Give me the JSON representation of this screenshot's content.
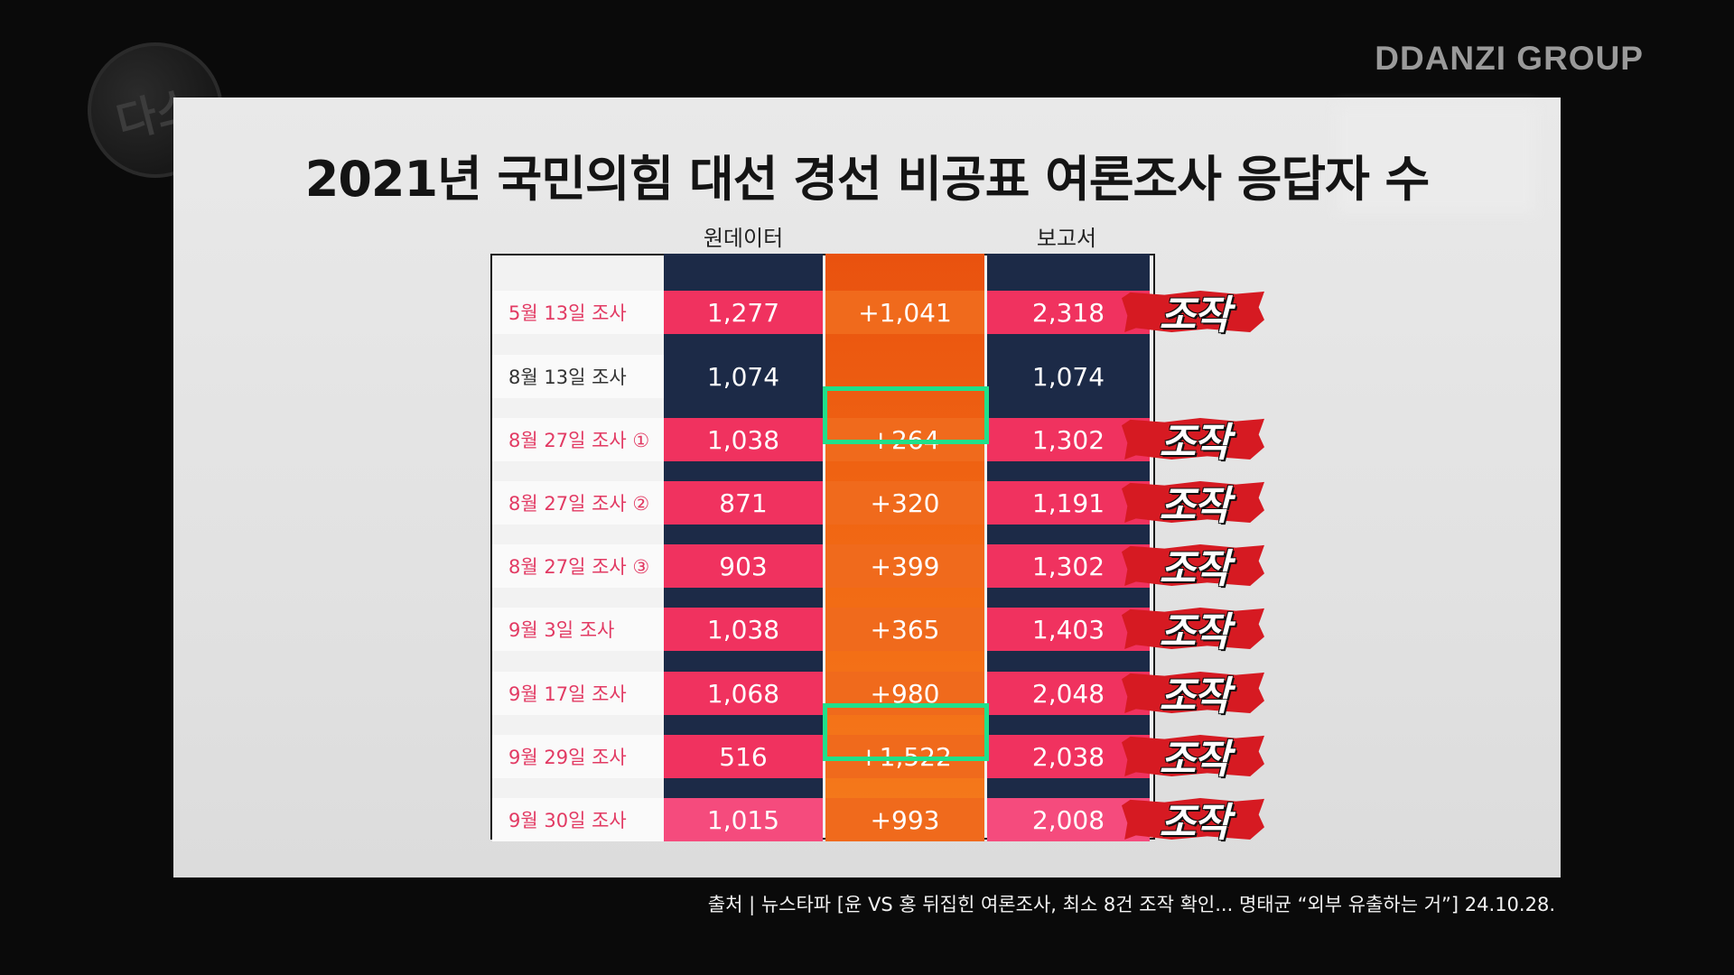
{
  "logo": {
    "text": "다스"
  },
  "brand": {
    "name": "DDANZI GROUP"
  },
  "colors": {
    "navy": "#1c2a47",
    "pink": "#f0325f",
    "pink_light": "#f54b7d",
    "orange": "#f06a1c",
    "orange_dark": "#e9520f",
    "highlight": "#20e08a",
    "stamp_red": "#d61a22"
  },
  "chart_data": {
    "type": "table",
    "title": "2021년 국민의힘 대선 경선 비공표 여론조사 응답자 수",
    "columns": [
      "원데이터",
      "",
      "보고서"
    ],
    "rows": [
      {
        "label": "5월 13일 조사",
        "raw": "1,277",
        "diff": "+1,041",
        "report": "2,318",
        "tag": "조작",
        "highlight": false,
        "manipulated": true
      },
      {
        "label": "8월 13일 조사",
        "raw": "1,074",
        "diff": "",
        "report": "1,074",
        "tag": "",
        "highlight": false,
        "manipulated": false
      },
      {
        "label": "8월 27일 조사 ①",
        "raw": "1,038",
        "diff": "+264",
        "report": "1,302",
        "tag": "조작",
        "highlight": true,
        "manipulated": true
      },
      {
        "label": "8월 27일 조사 ②",
        "raw": "871",
        "diff": "+320",
        "report": "1,191",
        "tag": "조작",
        "highlight": false,
        "manipulated": true
      },
      {
        "label": "8월 27일 조사 ③",
        "raw": "903",
        "diff": "+399",
        "report": "1,302",
        "tag": "조작",
        "highlight": false,
        "manipulated": true
      },
      {
        "label": "9월   3일 조사",
        "raw": "1,038",
        "diff": "+365",
        "report": "1,403",
        "tag": "조작",
        "highlight": false,
        "manipulated": true
      },
      {
        "label": "9월 17일 조사",
        "raw": "1,068",
        "diff": "+980",
        "report": "2,048",
        "tag": "조작",
        "highlight": false,
        "manipulated": true
      },
      {
        "label": "9월 29일 조사",
        "raw": "516",
        "diff": "+1,522",
        "report": "2,038",
        "tag": "조작",
        "highlight": true,
        "manipulated": true
      },
      {
        "label": "9월 30일 조사",
        "raw": "1,015",
        "diff": "+993",
        "report": "2,008",
        "tag": "조작",
        "highlight": false,
        "manipulated": true
      }
    ]
  },
  "source": "출처 | 뉴스타파 [윤 VS 홍 뒤집힌 여론조사, 최소 8건 조작 확인... 명태균 “외부 유출하는 거”] 24.10.28."
}
